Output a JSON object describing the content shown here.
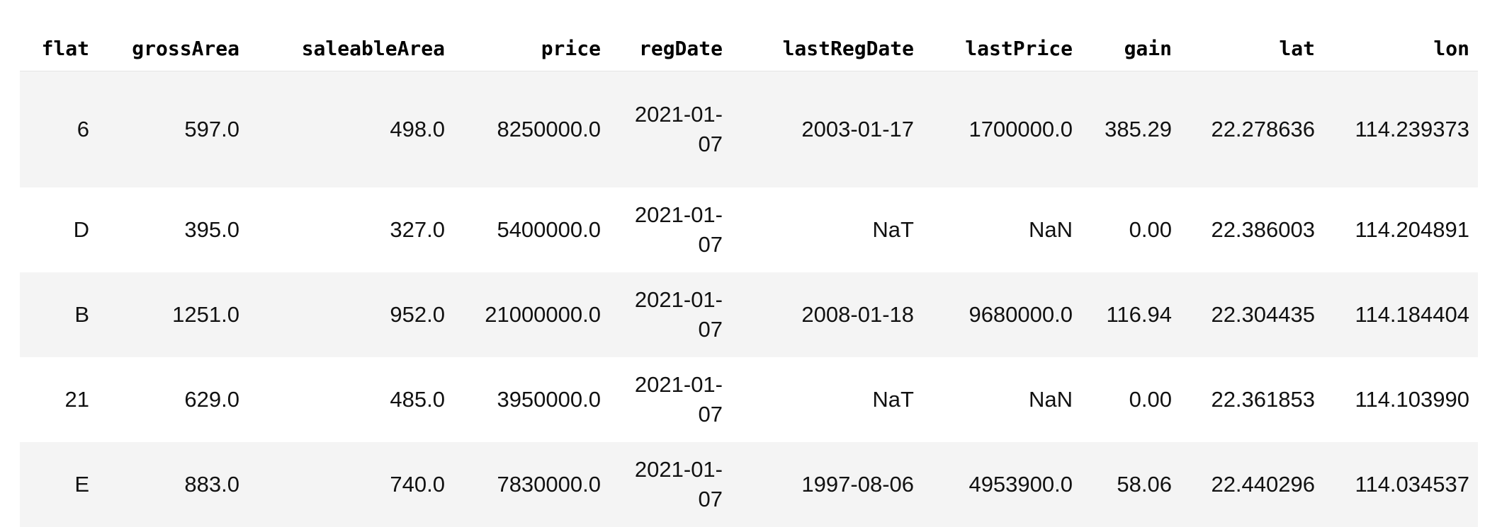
{
  "table": {
    "columns": [
      "flat",
      "grossArea",
      "saleableArea",
      "price",
      "regDate",
      "lastRegDate",
      "lastPrice",
      "gain",
      "lat",
      "lon"
    ],
    "rows": [
      {
        "flat": "6",
        "grossArea": "597.0",
        "saleableArea": "498.0",
        "price": "8250000.0",
        "regDate_line1": "2021-01-",
        "regDate_line2": "07",
        "lastRegDate": "2003-01-17",
        "lastPrice": "1700000.0",
        "gain": "385.29",
        "lat": "22.278636",
        "lon": "114.239373"
      },
      {
        "flat": "D",
        "grossArea": "395.0",
        "saleableArea": "327.0",
        "price": "5400000.0",
        "regDate_line1": "2021-01-",
        "regDate_line2": "07",
        "lastRegDate": "NaT",
        "lastPrice": "NaN",
        "gain": "0.00",
        "lat": "22.386003",
        "lon": "114.204891"
      },
      {
        "flat": "B",
        "grossArea": "1251.0",
        "saleableArea": "952.0",
        "price": "21000000.0",
        "regDate_line1": "2021-01-",
        "regDate_line2": "07",
        "lastRegDate": "2008-01-18",
        "lastPrice": "9680000.0",
        "gain": "116.94",
        "lat": "22.304435",
        "lon": "114.184404"
      },
      {
        "flat": "21",
        "grossArea": "629.0",
        "saleableArea": "485.0",
        "price": "3950000.0",
        "regDate_line1": "2021-01-",
        "regDate_line2": "07",
        "lastRegDate": "NaT",
        "lastPrice": "NaN",
        "gain": "0.00",
        "lat": "22.361853",
        "lon": "114.103990"
      },
      {
        "flat": "E",
        "grossArea": "883.0",
        "saleableArea": "740.0",
        "price": "7830000.0",
        "regDate_line1": "2021-01-",
        "regDate_line2": "07",
        "lastRegDate": "1997-08-06",
        "lastPrice": "4953900.0",
        "gain": "58.06",
        "lat": "22.440296",
        "lon": "114.034537"
      }
    ]
  }
}
